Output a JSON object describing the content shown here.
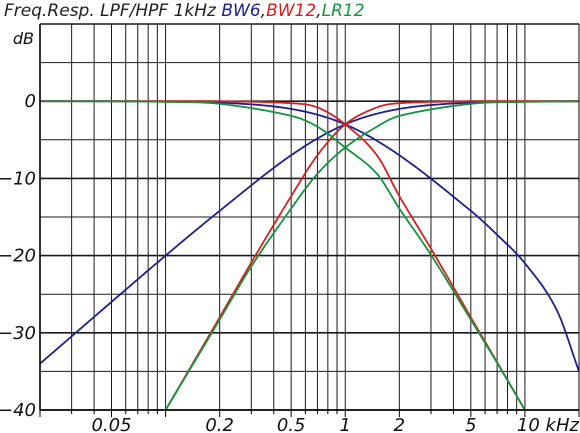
{
  "chart_data": {
    "type": "line",
    "title_parts": [
      {
        "text": "Freq.Resp. LPF/HPF 1kHz ",
        "color": "#1f1f1f"
      },
      {
        "text": "BW6",
        "color": "#1f1f8f"
      },
      {
        "text": ",",
        "color": "#1f1f1f"
      },
      {
        "text": "BW12",
        "color": "#d62020"
      },
      {
        "text": ",",
        "color": "#1f1f1f"
      },
      {
        "text": "LR12",
        "color": "#159440"
      }
    ],
    "ylabel": "dB",
    "xscale": "log",
    "xlim": [
      0.02,
      20
    ],
    "ylim": [
      -40,
      10
    ],
    "grid": true,
    "x_tick_labels": [
      {
        "value": 0.05,
        "label": "0.05"
      },
      {
        "value": 0.2,
        "label": "0.2"
      },
      {
        "value": 0.5,
        "label": "0.5"
      },
      {
        "value": 1,
        "label": "1"
      },
      {
        "value": 2,
        "label": "2"
      },
      {
        "value": 5,
        "label": "5"
      },
      {
        "value": 10,
        "label": "10 kHz"
      }
    ],
    "y_tick_labels": [
      {
        "value": 0,
        "label": "0"
      },
      {
        "value": -10,
        "label": "−10"
      },
      {
        "value": -20,
        "label": "−20"
      },
      {
        "value": -30,
        "label": "−30"
      },
      {
        "value": -40,
        "label": "−40"
      }
    ],
    "series": [
      {
        "name": "BW6",
        "filter": "HPF",
        "color": "#1f1f8f",
        "x": [
          0.02,
          0.05,
          0.1,
          0.2,
          0.5,
          1,
          2,
          5,
          10,
          20
        ],
        "y": [
          -34,
          -26.0,
          -20.0,
          -14.2,
          -7.0,
          -3.0,
          -1.0,
          -0.17,
          -0.04,
          -0.01
        ]
      },
      {
        "name": "BW6",
        "filter": "LPF",
        "color": "#1f1f8f",
        "x": [
          0.02,
          0.05,
          0.1,
          0.2,
          0.5,
          1,
          2,
          5,
          7,
          10,
          15,
          20
        ],
        "y": [
          0,
          -0.01,
          -0.04,
          -0.17,
          -1.0,
          -3.0,
          -7.0,
          -14.2,
          -17.3,
          -21,
          -27,
          -35
        ]
      },
      {
        "name": "BW12",
        "filter": "HPF",
        "color": "#d62020",
        "x": [
          0.1,
          0.2,
          0.3,
          0.5,
          0.7,
          1,
          1.5,
          2,
          5,
          10,
          20
        ],
        "y": [
          -40,
          -28.0,
          -20.9,
          -12.3,
          -7.0,
          -3.0,
          -0.8,
          -0.26,
          -0.01,
          0,
          0
        ]
      },
      {
        "name": "BW12",
        "filter": "LPF",
        "color": "#d62020",
        "x": [
          0.02,
          0.05,
          0.1,
          0.2,
          0.5,
          0.7,
          1,
          1.5,
          2,
          3,
          5,
          7,
          10
        ],
        "y": [
          0,
          0,
          0,
          -0.01,
          -0.26,
          -0.8,
          -3.0,
          -7.0,
          -12.3,
          -19.1,
          -28.0,
          -33.8,
          -40
        ]
      },
      {
        "name": "LR12",
        "filter": "HPF",
        "color": "#159440",
        "x": [
          0.1,
          0.2,
          0.3,
          0.5,
          0.7,
          1,
          1.5,
          2,
          5,
          10,
          20
        ],
        "y": [
          -40,
          -28.3,
          -21.4,
          -13.9,
          -9.4,
          -6.0,
          -3.3,
          -1.9,
          -0.34,
          -0.09,
          -0.02
        ]
      },
      {
        "name": "LR12",
        "filter": "LPF",
        "color": "#159440",
        "x": [
          0.02,
          0.05,
          0.1,
          0.2,
          0.5,
          0.7,
          1,
          1.5,
          2,
          3,
          5,
          7,
          10
        ],
        "y": [
          -0.01,
          -0.02,
          -0.09,
          -0.34,
          -1.9,
          -3.3,
          -6.0,
          -9.4,
          -13.9,
          -19.9,
          -28.3,
          -33.9,
          -40
        ]
      }
    ]
  }
}
